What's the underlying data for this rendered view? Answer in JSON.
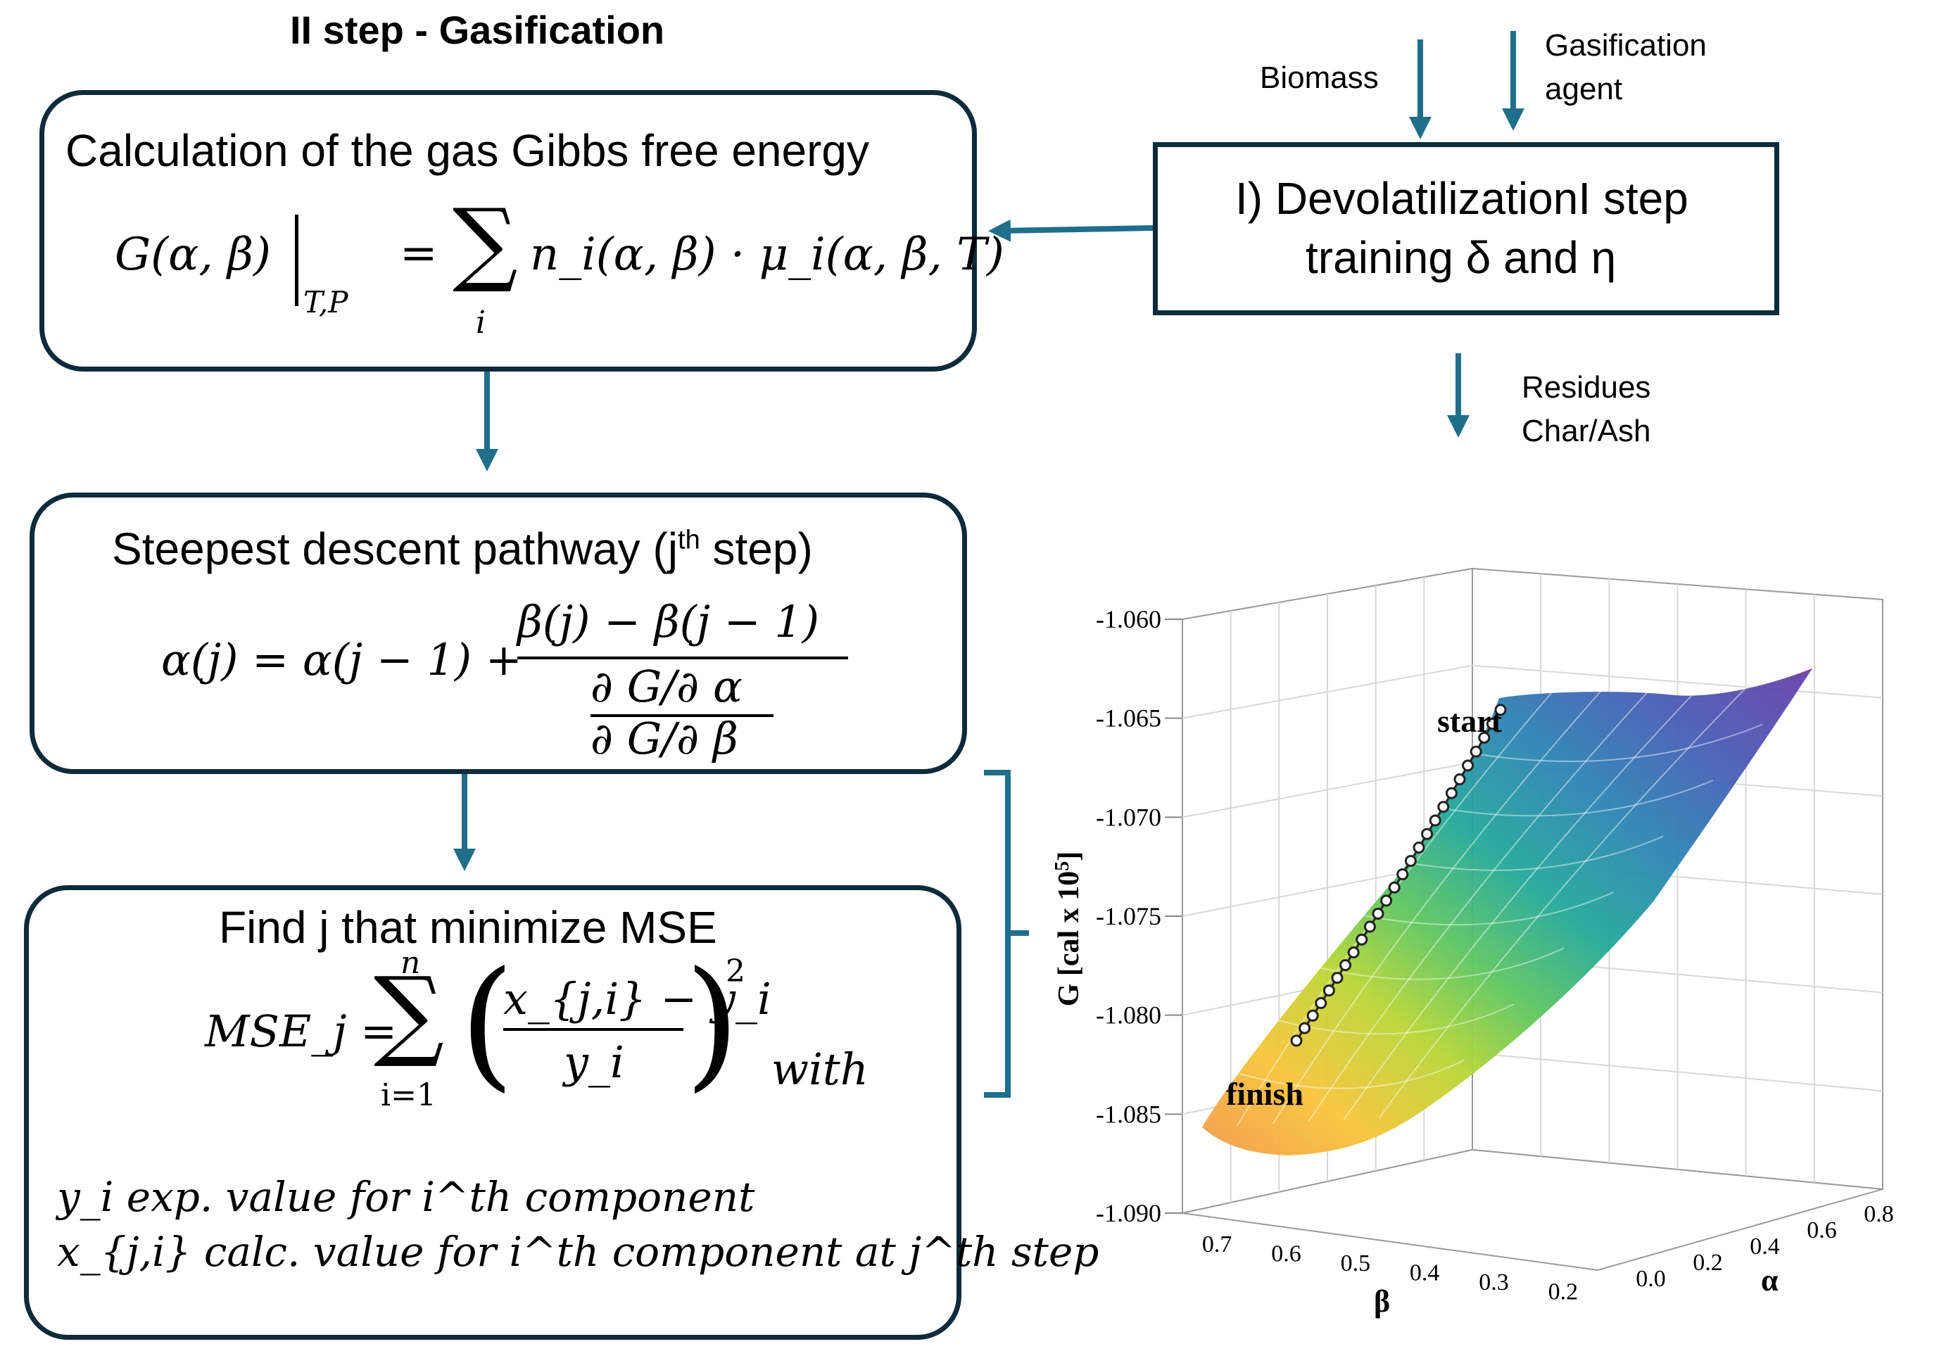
{
  "step2_title": "II step - Gasification",
  "box1": {
    "title": "Calculation  of the gas Gibbs free energy",
    "formula_lhs": "G(α, β)",
    "formula_sub": "T,P",
    "formula_rhs_eq": "=",
    "formula_sum": "∑",
    "formula_sum_index": "i",
    "formula_rhs": "n_i(α, β) · μ_i(α, β, T)"
  },
  "box2": {
    "title_pre": "Steepest descent pathway  (j",
    "title_sup": "th",
    "title_post": " step)",
    "formula_lhs": "α(j) = α(j − 1) +",
    "frac_num": "β(j) − β(j − 1)",
    "frac_den_num": "∂ G/∂ α",
    "frac_den_den": "∂ G/∂ β"
  },
  "box3": {
    "title": "Find j that minimize  MSE",
    "formula_lhs": "MSE_j =",
    "sum_upper": "n",
    "sum_lower": "i=1",
    "frac_num": "x_{j,i} − y_i",
    "frac_den": "y_i",
    "exponent": "2",
    "with": "with",
    "def_y": "y_i exp. value for i^th component",
    "def_x": "x_{j,i} calc. value for i^th component at j^th step"
  },
  "devol_box": {
    "line1": "I) DevolatilizationI step",
    "line2": "training  δ and η"
  },
  "inputs": {
    "biomass": "Biomass",
    "agent_line1": "Gasification",
    "agent_line2": "agent"
  },
  "outputs": {
    "residues_line1": "Residues",
    "residues_line2": "Char/Ash"
  },
  "colors": {
    "box_border": "#0e2a3b",
    "arrow": "#1f6f8b",
    "bracket": "#1f6f8b"
  },
  "chart_data": {
    "type": "surface3d",
    "zlabel": "G [cal x 10^5]",
    "zlabel_main": "G [cal x 10",
    "zlabel_sup": "5",
    "zlabel_end": "]",
    "xlabel": "β",
    "ylabel": "α",
    "z_ticks": [
      "-1.060",
      "-1.065",
      "-1.070",
      "-1.075",
      "-1.080",
      "-1.085",
      "-1.090"
    ],
    "beta_ticks": [
      "0.7",
      "0.6",
      "0.5",
      "0.4",
      "0.3",
      "0.2"
    ],
    "alpha_ticks": [
      "0.0",
      "0.2",
      "0.4",
      "0.6",
      "0.8"
    ],
    "zlim": [
      -1.09,
      -1.06
    ],
    "annotations": [
      "start",
      "finish"
    ],
    "path": {
      "start": {
        "beta": 0.33,
        "alpha": 0.0,
        "G": -1.066
      },
      "finish": {
        "beta": 0.62,
        "alpha": 0.0,
        "G": -1.082
      },
      "n_points": 26
    },
    "colormap": "viridis-to-orange (purple high → orange low)"
  }
}
